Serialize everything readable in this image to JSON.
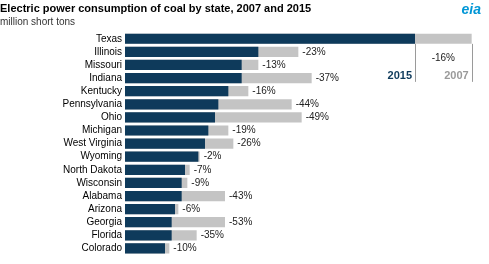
{
  "chart_data": {
    "type": "bar",
    "orientation": "horizontal",
    "title": "Electric power consumption of coal by state, 2007 and 2015",
    "subtitle": "million short tons",
    "logo": "eia",
    "categories": [
      "Texas",
      "Illinois",
      "Missouri",
      "Indiana",
      "Kentucky",
      "Pennsylvania",
      "Ohio",
      "Michigan",
      "West Virginia",
      "Wyoming",
      "North Dakota",
      "Wisconsin",
      "Alabama",
      "Arizona",
      "Georgia",
      "Florida",
      "Colorado"
    ],
    "series": [
      {
        "name": "2015",
        "color": "#0e3a5b",
        "values": [
          87,
          40,
          35,
          35,
          31,
          28,
          27,
          25,
          24,
          22,
          18,
          17,
          17,
          15,
          14,
          14,
          12
        ]
      },
      {
        "name": "2007",
        "color": "#c4c4c4",
        "values": [
          104,
          52,
          40,
          56,
          37,
          50,
          53,
          31,
          32.5,
          22.4,
          19.4,
          18.7,
          30,
          16,
          30,
          21.5,
          13.3
        ]
      }
    ],
    "changes": [
      -16,
      -23,
      -13,
      -37,
      -16,
      -44,
      -49,
      -19,
      -26,
      -2,
      -7,
      -9,
      -43,
      -6,
      -53,
      -35,
      -10
    ],
    "change_labels": [
      "-16%",
      "-23%",
      "-13%",
      "-37%",
      "-16%",
      "-44%",
      "-49%",
      "-19%",
      "-26%",
      "-2%",
      "-7%",
      "-9%",
      "-43%",
      "-6%",
      "-53%",
      "-35%",
      "-10%"
    ],
    "xlim": [
      0,
      108
    ],
    "grid": false,
    "tick_labels": "y"
  }
}
